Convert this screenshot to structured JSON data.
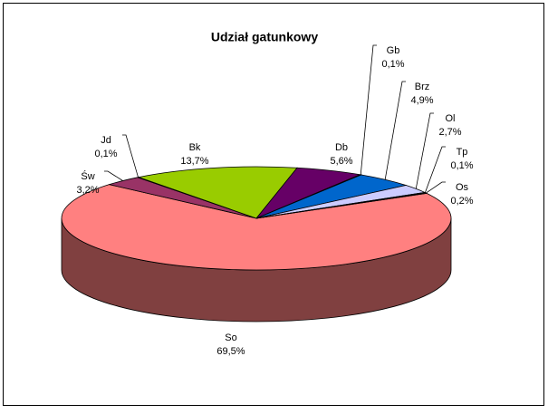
{
  "chart_data": {
    "type": "pie3d",
    "title": "Udział gatunkowy",
    "categories": [
      "So",
      "Św",
      "Jd",
      "Bk",
      "Db",
      "Gb",
      "Brz",
      "Ol",
      "Tp",
      "Os"
    ],
    "values": [
      69.5,
      3.2,
      0.1,
      13.7,
      5.6,
      0.1,
      4.9,
      2.7,
      0.1,
      0.2
    ],
    "value_labels": [
      "69,5%",
      "3,2%",
      "0,1%",
      "13,7%",
      "5,6%",
      "0,1%",
      "4,9%",
      "2,7%",
      "0,1%",
      "0,2%"
    ],
    "colors": [
      "#ff8080",
      "#993366",
      "#ffffcc",
      "#99cc00",
      "#660066",
      "#ff9900",
      "#0066cc",
      "#ccccff",
      "#800000",
      "#ccffff"
    ]
  }
}
